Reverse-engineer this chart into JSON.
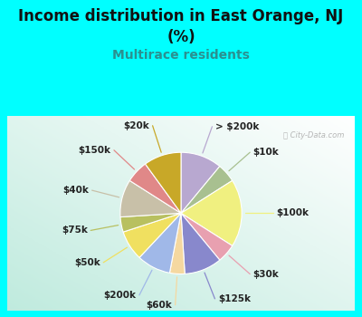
{
  "title": "Income distribution in East Orange, NJ\n(%)",
  "subtitle": "Multirace residents",
  "watermark": "ⓘ City-Data.com",
  "bg_outer": "#00FFFF",
  "bg_chart_colors": [
    "#ffffff",
    "#c8e8d8",
    "#b0dcd0"
  ],
  "labels": [
    "> $200k",
    "$10k",
    "$100k",
    "$30k",
    "$125k",
    "$60k",
    "$200k",
    "$50k",
    "$75k",
    "$40k",
    "$150k",
    "$20k"
  ],
  "values": [
    11,
    5,
    18,
    5,
    10,
    4,
    9,
    8,
    4,
    10,
    6,
    10
  ],
  "colors": [
    "#b8a8d0",
    "#a8c090",
    "#f0f080",
    "#e8a0b0",
    "#8888cc",
    "#f5d8a0",
    "#a0b8e8",
    "#f0e060",
    "#b8c060",
    "#c8c0a8",
    "#e08888",
    "#c8a828"
  ],
  "line_colors": [
    "#b8a8d0",
    "#a8c090",
    "#f0f080",
    "#e8a0b0",
    "#8888cc",
    "#f5d8a0",
    "#a0b8e8",
    "#f0e060",
    "#b8c060",
    "#c8c0a8",
    "#e08888",
    "#c8a828"
  ],
  "title_fontsize": 12,
  "subtitle_fontsize": 10,
  "subtitle_color": "#2a9090",
  "label_fontsize": 7.5,
  "label_color": "#222222"
}
